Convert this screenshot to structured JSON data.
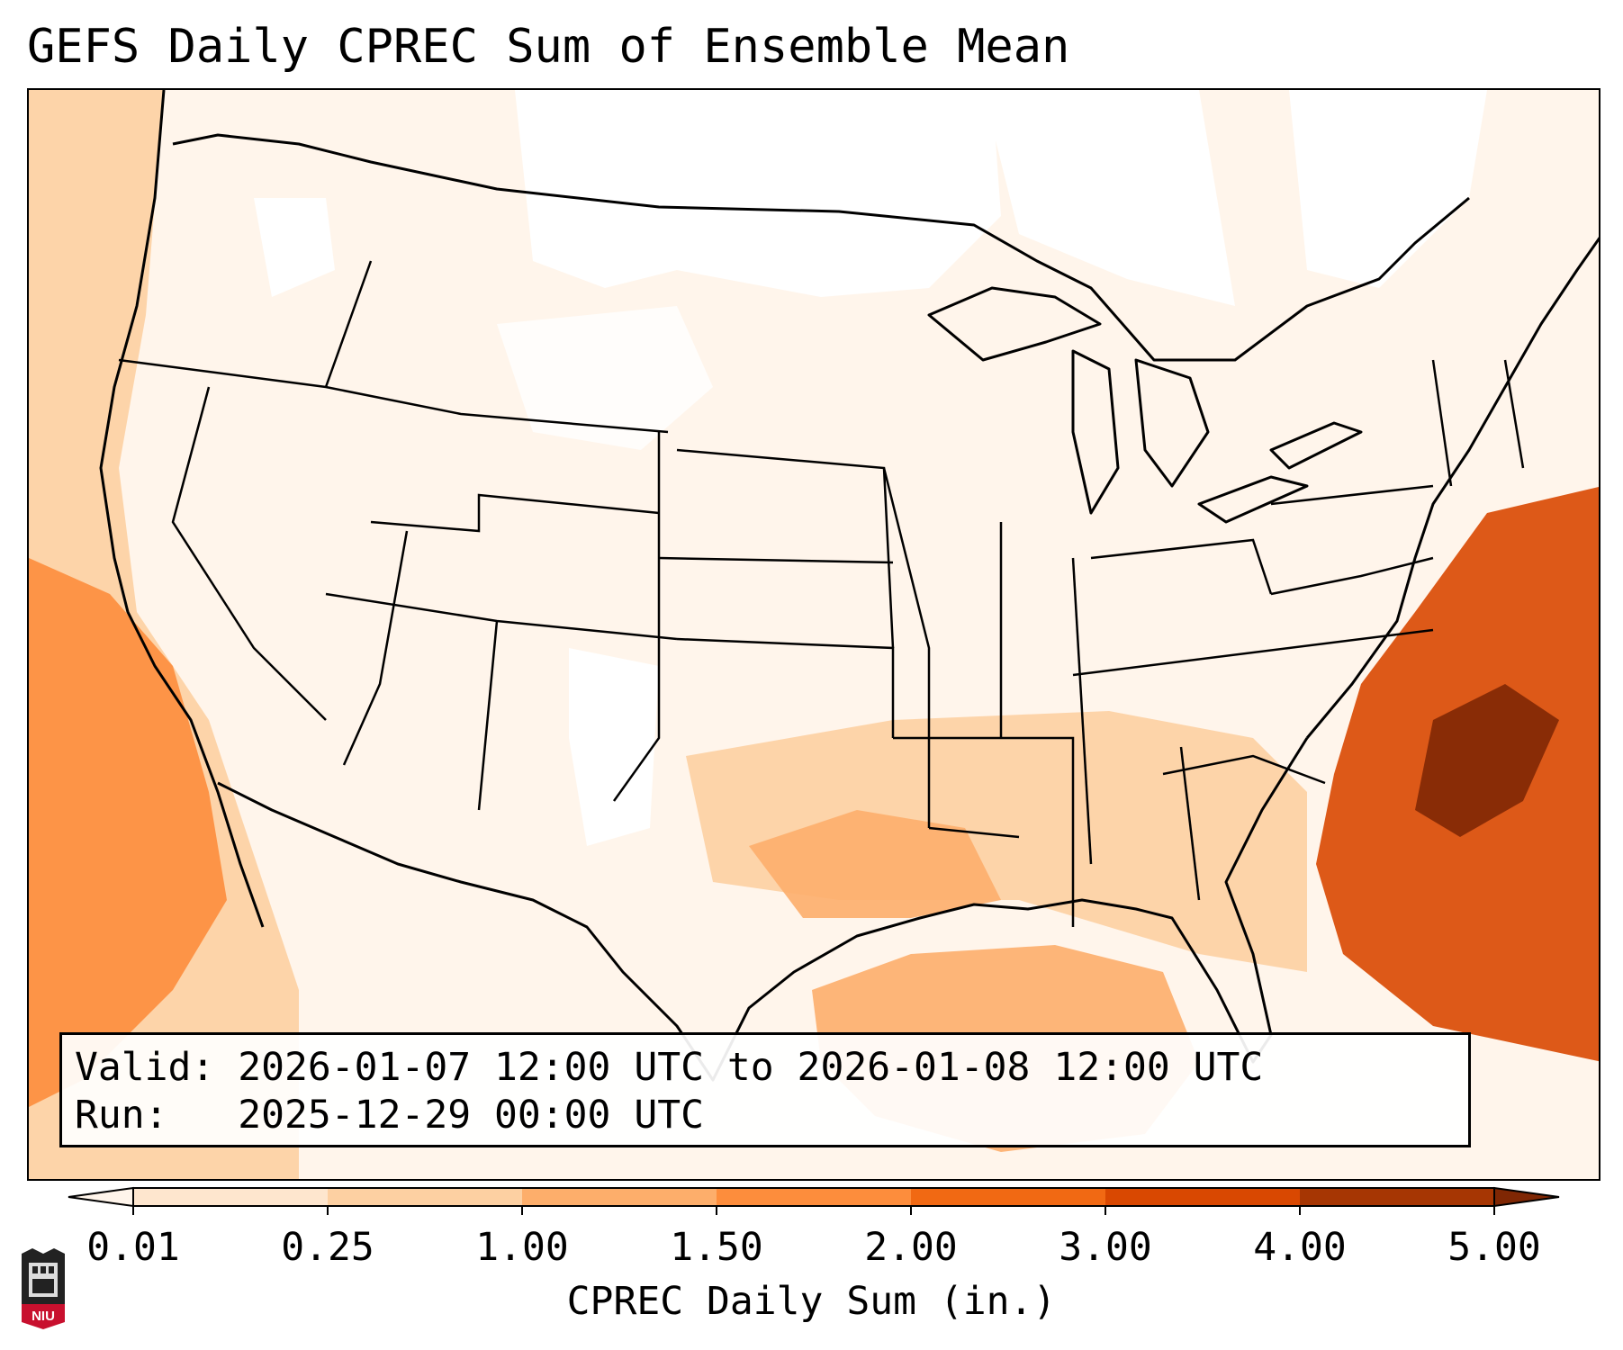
{
  "title": "GEFS Daily CPREC Sum of Ensemble Mean",
  "info": {
    "valid_label": "Valid:",
    "valid_value": "2026-01-07 12:00 UTC to 2026-01-08 12:00 UTC",
    "run_label": "Run:",
    "run_value": "2025-12-29 00:00 UTC"
  },
  "colorbar": {
    "label": "CPREC Daily Sum (in.)",
    "ticks": [
      "0.01",
      "0.25",
      "1.00",
      "1.50",
      "2.00",
      "3.00",
      "4.00",
      "5.00"
    ],
    "colors": [
      "#fff5eb",
      "#fee6ce",
      "#fdd0a2",
      "#fdae6b",
      "#fd8d3c",
      "#f16913",
      "#d94801",
      "#a63603",
      "#7f2704"
    ],
    "extend": "both"
  },
  "logo": {
    "text": "NIU"
  },
  "precip_regions": [
    {
      "name": "pacific-coast",
      "level": 2
    },
    {
      "name": "pacific-offshore",
      "level": 4
    },
    {
      "name": "atlantic-offshore",
      "level": 6
    },
    {
      "name": "atlantic-core",
      "level": 8
    },
    {
      "name": "gulf-of-mexico",
      "level": 3
    },
    {
      "name": "south-central-us",
      "level": 2
    },
    {
      "name": "east-texas-louisiana",
      "level": 3
    }
  ]
}
